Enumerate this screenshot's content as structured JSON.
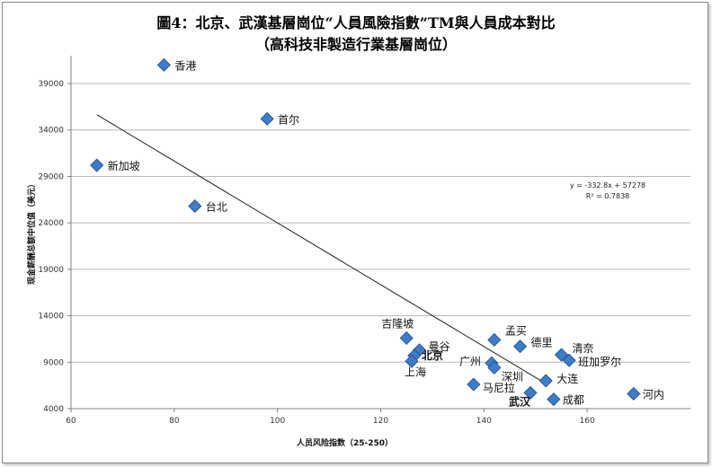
{
  "chart_data": {
    "type": "scatter",
    "title": "圖4：北京、武漢基層崗位“人員風險指數”TM與人員成本對比",
    "subtitle": "（高科技非製造行業基層崗位）",
    "xlabel": "人员风险指数（25-250）",
    "ylabel": "现金薪酬总额中位值（美元）",
    "xlim": [
      60,
      180
    ],
    "ylim": [
      4000,
      42000
    ],
    "xticks": [
      60,
      80,
      100,
      120,
      140,
      160
    ],
    "yticks": [
      4000,
      9000,
      14000,
      19000,
      24000,
      29000,
      34000,
      39000
    ],
    "grid": true,
    "points": [
      {
        "label": "香港",
        "x": 78,
        "y": 41000,
        "bold": false
      },
      {
        "label": "首尔",
        "x": 98,
        "y": 35200,
        "bold": false
      },
      {
        "label": "新加坡",
        "x": 65,
        "y": 30200,
        "bold": false
      },
      {
        "label": "台北",
        "x": 84,
        "y": 25800,
        "bold": false
      },
      {
        "label": "吉隆坡",
        "x": 125,
        "y": 11600,
        "bold": false
      },
      {
        "label": "曼谷",
        "x": 127.5,
        "y": 10300,
        "bold": false
      },
      {
        "label": "北京",
        "x": 126.5,
        "y": 9700,
        "bold": true
      },
      {
        "label": "上海",
        "x": 126,
        "y": 9100,
        "bold": false
      },
      {
        "label": "孟买",
        "x": 142,
        "y": 11400,
        "bold": false
      },
      {
        "label": "广州",
        "x": 141.5,
        "y": 8900,
        "bold": false
      },
      {
        "label": "深圳",
        "x": 142,
        "y": 8400,
        "bold": false
      },
      {
        "label": "德里",
        "x": 147,
        "y": 10700,
        "bold": false
      },
      {
        "label": "清奈",
        "x": 155,
        "y": 9800,
        "bold": false
      },
      {
        "label": "班加罗尔",
        "x": 156.5,
        "y": 9200,
        "bold": false
      },
      {
        "label": "大连",
        "x": 152,
        "y": 7000,
        "bold": false
      },
      {
        "label": "马尼拉",
        "x": 138,
        "y": 6600,
        "bold": false
      },
      {
        "label": "武汉",
        "x": 149,
        "y": 5700,
        "bold": true
      },
      {
        "label": "成都",
        "x": 153.5,
        "y": 5000,
        "bold": false
      },
      {
        "label": "河内",
        "x": 169,
        "y": 5600,
        "bold": false
      }
    ],
    "trendline": {
      "slope": -332.8,
      "intercept": 57278,
      "x_range": [
        65,
        152
      ],
      "equation": "y = -332.8x + 57278",
      "r_squared": "R² = 0.7838"
    },
    "colors": {
      "marker": "#3d7cc9",
      "marker_edge": "#1f4f8f",
      "gridline": "#b8b8b8",
      "axis": "#808080",
      "trendline": "#222222"
    }
  }
}
